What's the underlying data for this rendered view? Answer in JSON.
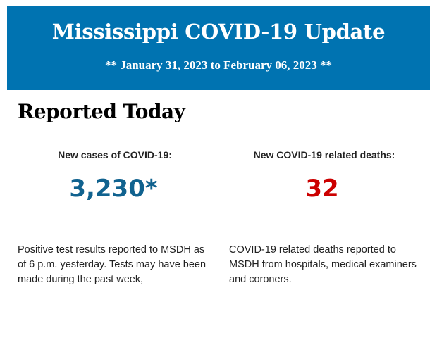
{
  "banner": {
    "title": "Mississippi COVID-19 Update",
    "date_range": "** January 31, 2023 to February 06, 2023 **",
    "color": "#0073b1"
  },
  "section_heading": "Reported Today",
  "cases": {
    "label": "New cases of COVID-19:",
    "value": "3,230*",
    "color": "#10628f",
    "note_lines": [
      "Positive test results reported to MSDH as",
      "of 6 p.m. yesterday. Tests may have been",
      "made during the past week,"
    ]
  },
  "deaths": {
    "label": "New COVID-19 related deaths:",
    "value": "32",
    "color": "#cc0000",
    "note_lines": [
      "COVID-19 related deaths reported to",
      "MSDH from hospitals, medical examiners",
      "and coroners."
    ]
  }
}
